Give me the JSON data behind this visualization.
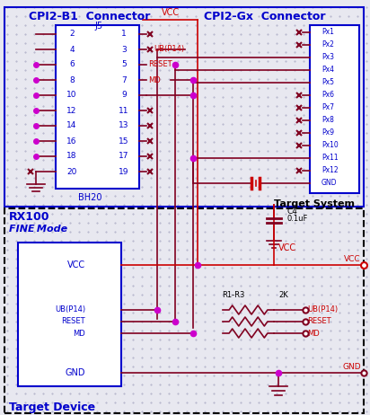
{
  "title_left": "CPI2-B1  Connector",
  "title_right": "CPI2-Gx  Connector",
  "title_device": "Target Device",
  "title_system": "Target System",
  "title_rx": "RX100",
  "title_fine": "FINE Mode",
  "bg_color": "#e8e8f0",
  "blue": "#0000cc",
  "dark_red": "#800020",
  "magenta": "#cc00cc",
  "red": "#cc0000",
  "cyan_text": "#0088cc",
  "dot_color": "#e0e0f0"
}
